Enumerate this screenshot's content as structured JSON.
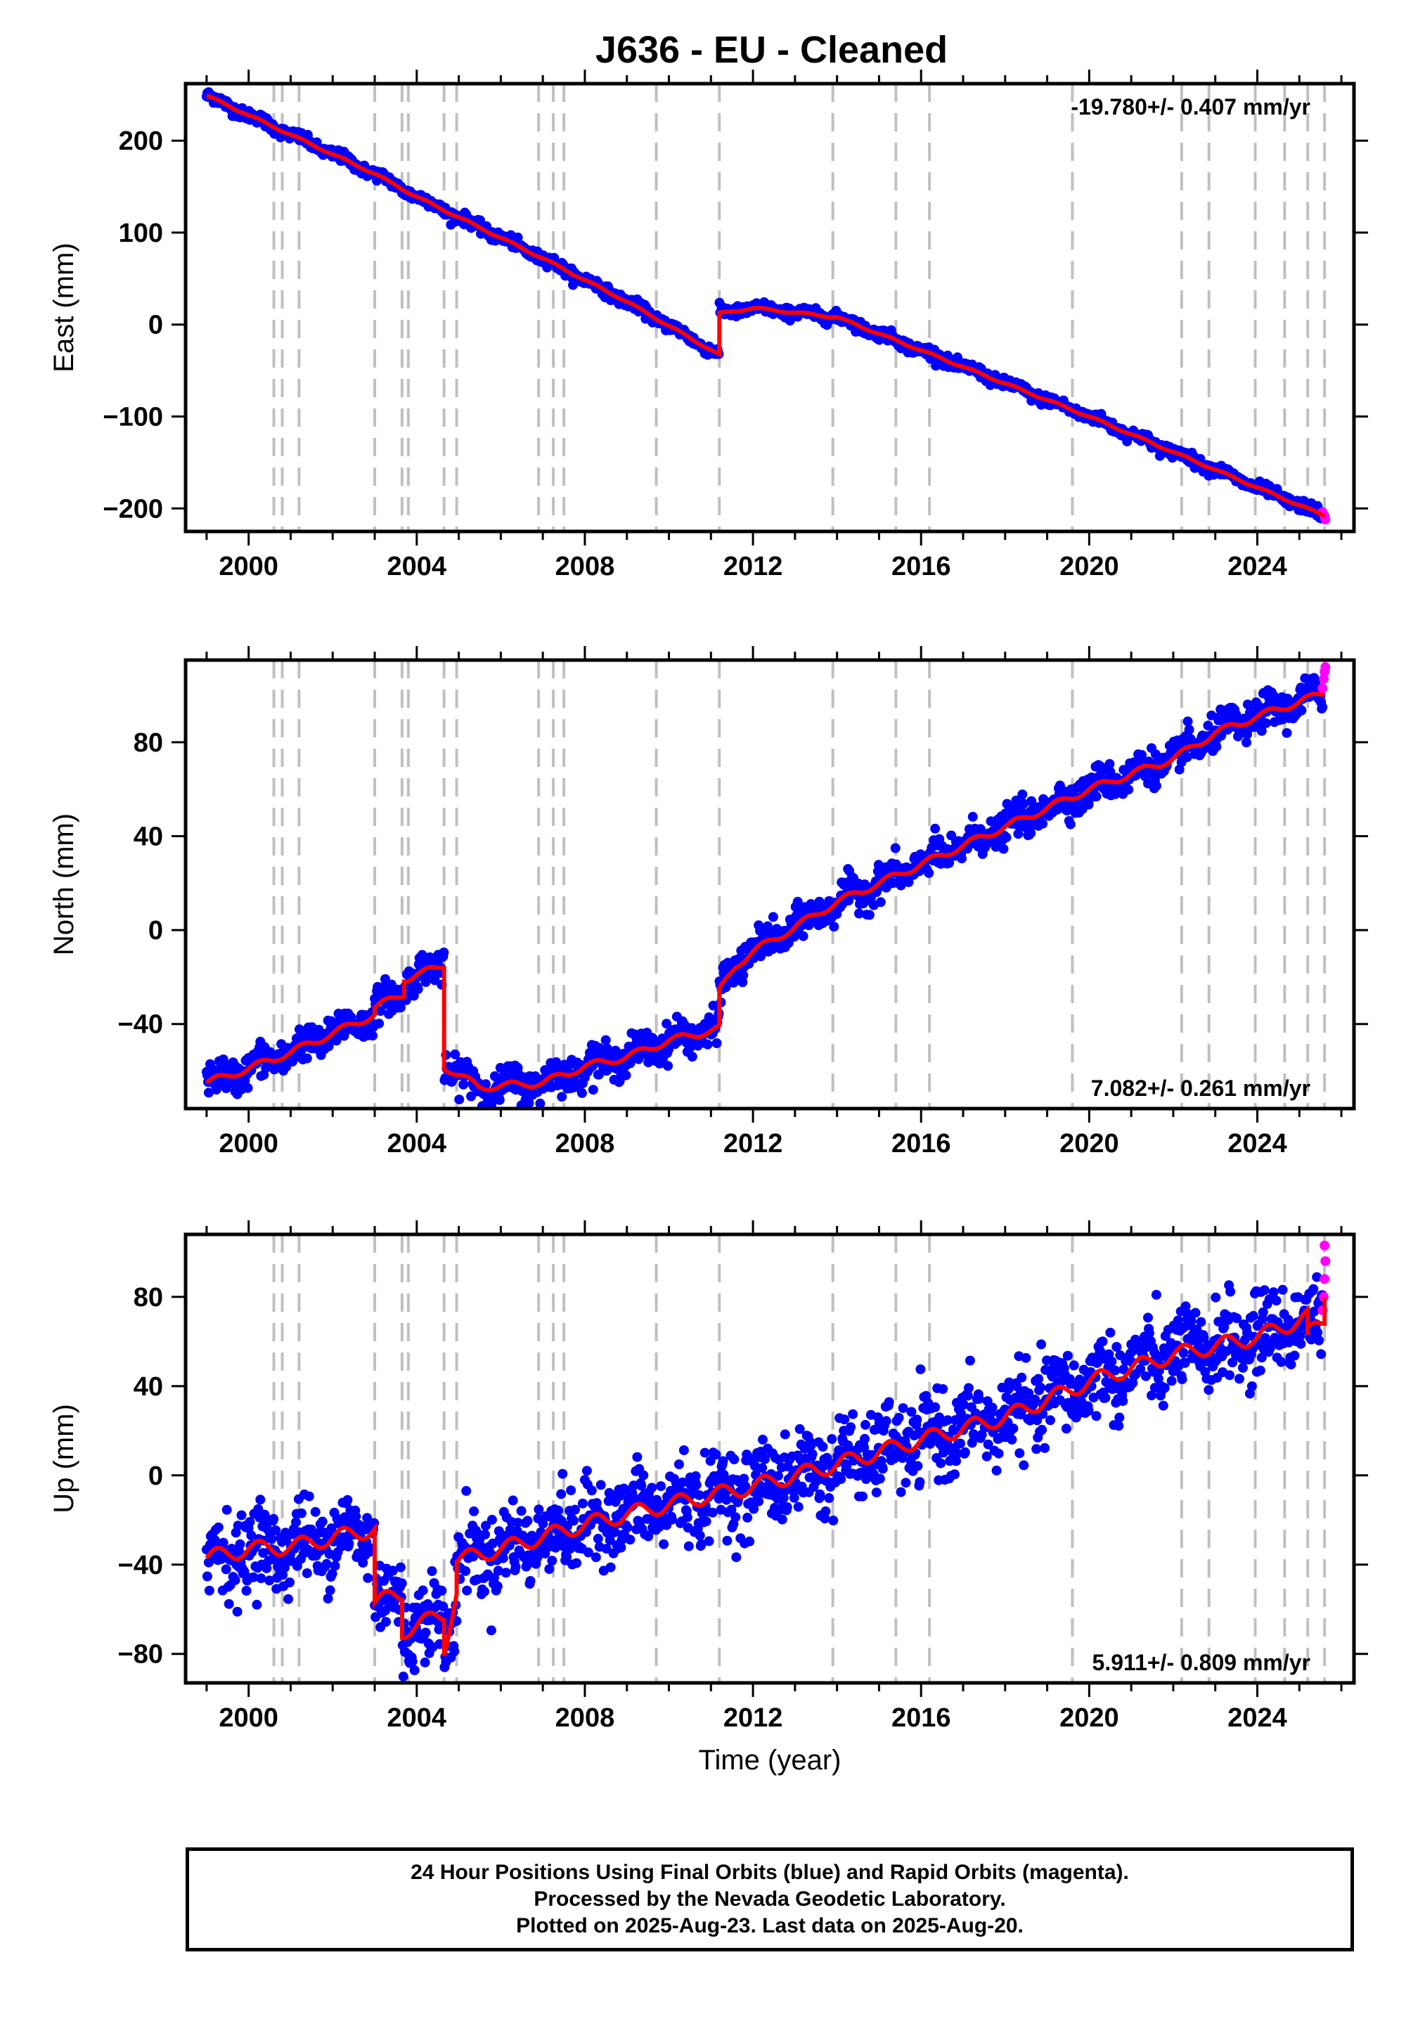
{
  "title": "J636  - EU - Cleaned",
  "xlabel": "Time (year)",
  "footer": [
    "24 Hour Positions Using Final Orbits (blue) and Rapid Orbits (magenta).",
    "Processed by the Nevada Geodetic Laboratory.",
    "Plotted on 2025-Aug-23. Last data on 2025-Aug-20."
  ],
  "colors": {
    "final": "#0000ff",
    "rapid": "#ff00ff",
    "model": "#ff0000",
    "break_line": "#c0c0c0"
  },
  "chart_data": [
    {
      "type": "scatter",
      "ylabel": "East (mm)",
      "rate": "-19.780+/- 0.407 mm/yr",
      "xlim": [
        1998.5,
        2026.3
      ],
      "ylim": [
        -225,
        262
      ],
      "xticks": [
        2000,
        2004,
        2008,
        2012,
        2016,
        2020,
        2024
      ],
      "yticks": [
        -200,
        -100,
        0,
        100,
        200
      ],
      "breaks": [
        2000.6,
        2000.8,
        2001.2,
        2003.0,
        2003.65,
        2003.8,
        2004.65,
        2004.95,
        2006.9,
        2007.25,
        2007.5,
        2009.7,
        2011.2,
        2013.9,
        2015.4,
        2016.2,
        2019.6,
        2022.2,
        2022.85,
        2023.95,
        2024.65,
        2025.2,
        2025.6
      ],
      "model": [
        [
          1999.0,
          249
        ],
        [
          2003.0,
          164
        ],
        [
          2004.0,
          139
        ],
        [
          2007.0,
          72
        ],
        [
          2009.0,
          25
        ],
        [
          2011.2,
          -33
        ],
        [
          2011.2,
          12
        ],
        [
          2012.0,
          18
        ],
        [
          2013.0,
          13
        ],
        [
          2014.0,
          8
        ],
        [
          2016.0,
          -28
        ],
        [
          2020.0,
          -100
        ],
        [
          2025.6,
          -208
        ]
      ],
      "noise": 3,
      "rapid": [
        [
          2025.55,
          -204
        ],
        [
          2025.6,
          -208
        ],
        [
          2025.62,
          -212
        ]
      ]
    },
    {
      "type": "scatter",
      "ylabel": "North (mm)",
      "rate": "7.082+/- 0.261 mm/yr",
      "xlim": [
        1998.5,
        2026.3
      ],
      "ylim": [
        -76,
        115
      ],
      "xticks": [
        2000,
        2004,
        2008,
        2012,
        2016,
        2020,
        2024
      ],
      "yticks": [
        -40,
        0,
        40,
        80
      ],
      "breaks": [
        2000.6,
        2000.8,
        2001.2,
        2003.0,
        2003.65,
        2003.8,
        2004.65,
        2004.95,
        2006.9,
        2007.25,
        2007.5,
        2009.7,
        2011.2,
        2013.9,
        2015.4,
        2016.2,
        2019.6,
        2022.2,
        2022.85,
        2023.95,
        2024.65,
        2025.2,
        2025.6
      ],
      "model": [
        [
          1999.0,
          -65
        ],
        [
          2000.0,
          -59
        ],
        [
          2001.0,
          -52
        ],
        [
          2002.0,
          -44
        ],
        [
          2003.0,
          -36
        ],
        [
          2003.0,
          -33
        ],
        [
          2003.7,
          -27
        ],
        [
          2003.7,
          -21
        ],
        [
          2004.65,
          -15
        ],
        [
          2004.65,
          -58
        ],
        [
          2005.5,
          -67
        ],
        [
          2007.0,
          -65
        ],
        [
          2008.0,
          -58
        ],
        [
          2009.0,
          -54
        ],
        [
          2010.0,
          -47
        ],
        [
          2011.2,
          -42
        ],
        [
          2011.2,
          -26
        ],
        [
          2011.6,
          -15
        ],
        [
          2012.0,
          -9
        ],
        [
          2012.5,
          -4
        ],
        [
          2014.0,
          12
        ],
        [
          2016.0,
          28
        ],
        [
          2018.0,
          44
        ],
        [
          2020.0,
          60
        ],
        [
          2022.0,
          73
        ],
        [
          2023.0,
          84
        ],
        [
          2024.0,
          91
        ],
        [
          2025.6,
          101
        ]
      ],
      "noise": 3.5,
      "rapid": [
        [
          2025.55,
          103
        ],
        [
          2025.58,
          107
        ],
        [
          2025.6,
          110
        ],
        [
          2025.62,
          112
        ]
      ]
    },
    {
      "type": "scatter",
      "ylabel": "Up (mm)",
      "rate": "5.911+/- 0.809 mm/yr",
      "xlim": [
        1998.5,
        2026.3
      ],
      "ylim": [
        -93,
        108
      ],
      "xticks": [
        2000,
        2004,
        2008,
        2012,
        2016,
        2020,
        2024
      ],
      "yticks": [
        -80,
        -40,
        0,
        40,
        80
      ],
      "breaks": [
        2000.6,
        2000.8,
        2001.2,
        2003.0,
        2003.65,
        2003.8,
        2004.65,
        2004.95,
        2006.9,
        2007.25,
        2007.5,
        2009.7,
        2011.2,
        2013.9,
        2015.4,
        2016.2,
        2019.6,
        2022.2,
        2022.85,
        2023.95,
        2024.65,
        2025.2,
        2025.6
      ],
      "model": [
        [
          1999.0,
          -37
        ],
        [
          2000.0,
          -33
        ],
        [
          2001.0,
          -32
        ],
        [
          2002.0,
          -28
        ],
        [
          2003.0,
          -24
        ],
        [
          2003.0,
          -57
        ],
        [
          2003.65,
          -53
        ],
        [
          2003.65,
          -70
        ],
        [
          2004.65,
          -62
        ],
        [
          2004.65,
          -78
        ],
        [
          2004.95,
          -52
        ],
        [
          2004.95,
          -38
        ],
        [
          2006.0,
          -33
        ],
        [
          2008.0,
          -22
        ],
        [
          2010.0,
          -13
        ],
        [
          2012.0,
          -5
        ],
        [
          2014.0,
          5
        ],
        [
          2016.0,
          16
        ],
        [
          2018.0,
          26
        ],
        [
          2020.0,
          42
        ],
        [
          2022.0,
          54
        ],
        [
          2024.0,
          62
        ],
        [
          2025.2,
          71
        ],
        [
          2025.2,
          63
        ],
        [
          2025.6,
          70
        ],
        [
          2025.6,
          80
        ]
      ],
      "noise": 9,
      "rapid": [
        [
          2025.55,
          74
        ],
        [
          2025.58,
          80
        ],
        [
          2025.6,
          88
        ],
        [
          2025.62,
          96
        ],
        [
          2025.6,
          103
        ]
      ]
    }
  ]
}
